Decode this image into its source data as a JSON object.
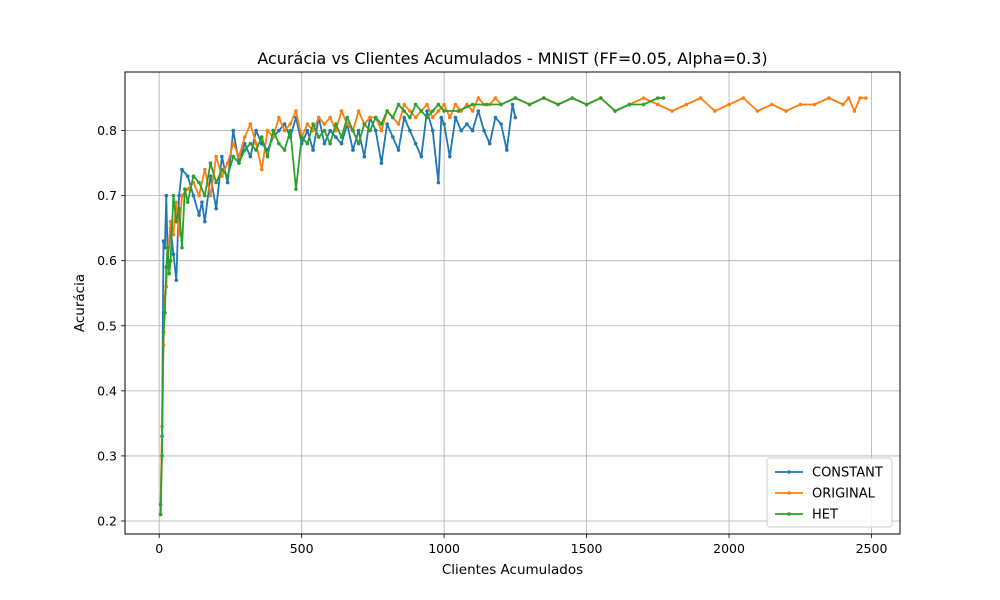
{
  "chart_data": {
    "type": "line",
    "title": "Acurácia vs Clientes Acumulados - MNIST (FF=0.05, Alpha=0.3)",
    "xlabel": "Clientes Acumulados",
    "ylabel": "Acurácia",
    "xlim": [
      -120,
      2600
    ],
    "ylim": [
      0.18,
      0.89
    ],
    "xticks": [
      0,
      500,
      1000,
      1500,
      2000,
      2500
    ],
    "yticks": [
      0.2,
      0.3,
      0.4,
      0.5,
      0.6,
      0.7,
      0.8
    ],
    "grid": true,
    "legend_position": "lower-right",
    "series": [
      {
        "name": "CONSTANT",
        "color": "#1f77b4",
        "x": [
          5,
          10,
          15,
          20,
          25,
          30,
          40,
          50,
          60,
          70,
          80,
          100,
          120,
          140,
          150,
          160,
          180,
          200,
          220,
          240,
          260,
          280,
          300,
          320,
          340,
          360,
          380,
          400,
          420,
          440,
          460,
          480,
          500,
          520,
          540,
          560,
          580,
          600,
          620,
          640,
          660,
          680,
          700,
          720,
          740,
          760,
          780,
          800,
          820,
          840,
          860,
          880,
          900,
          920,
          940,
          960,
          980,
          990,
          1000,
          1020,
          1040,
          1060,
          1080,
          1100,
          1120,
          1140,
          1160,
          1180,
          1200,
          1220,
          1240,
          1250
        ],
        "y": [
          0.225,
          0.33,
          0.63,
          0.62,
          0.7,
          0.6,
          0.65,
          0.61,
          0.57,
          0.7,
          0.74,
          0.73,
          0.7,
          0.67,
          0.69,
          0.66,
          0.73,
          0.68,
          0.76,
          0.72,
          0.8,
          0.75,
          0.78,
          0.76,
          0.8,
          0.78,
          0.77,
          0.79,
          0.8,
          0.81,
          0.79,
          0.82,
          0.78,
          0.8,
          0.77,
          0.82,
          0.78,
          0.8,
          0.79,
          0.78,
          0.81,
          0.77,
          0.8,
          0.76,
          0.82,
          0.8,
          0.75,
          0.81,
          0.79,
          0.77,
          0.82,
          0.8,
          0.78,
          0.76,
          0.83,
          0.8,
          0.72,
          0.82,
          0.81,
          0.76,
          0.82,
          0.8,
          0.81,
          0.8,
          0.83,
          0.8,
          0.78,
          0.82,
          0.81,
          0.77,
          0.84,
          0.82
        ]
      },
      {
        "name": "ORIGINAL",
        "color": "#ff7f0e",
        "x": [
          5,
          10,
          15,
          20,
          25,
          30,
          40,
          50,
          60,
          70,
          80,
          100,
          120,
          140,
          160,
          180,
          200,
          220,
          240,
          260,
          280,
          300,
          320,
          340,
          360,
          380,
          400,
          420,
          440,
          460,
          480,
          500,
          520,
          540,
          560,
          580,
          600,
          620,
          640,
          660,
          680,
          700,
          720,
          740,
          760,
          780,
          800,
          820,
          840,
          860,
          880,
          900,
          920,
          940,
          960,
          980,
          1000,
          1020,
          1040,
          1060,
          1080,
          1100,
          1120,
          1140,
          1160,
          1180,
          1200,
          1250,
          1300,
          1350,
          1400,
          1450,
          1500,
          1550,
          1600,
          1650,
          1700,
          1750,
          1800,
          1850,
          1900,
          1950,
          2000,
          2050,
          2100,
          2150,
          2200,
          2250,
          2300,
          2350,
          2400,
          2420,
          2440,
          2460,
          2480
        ],
        "y": [
          0.21,
          0.345,
          0.47,
          0.55,
          0.56,
          0.61,
          0.66,
          0.64,
          0.69,
          0.64,
          0.7,
          0.71,
          0.72,
          0.7,
          0.74,
          0.7,
          0.76,
          0.73,
          0.75,
          0.78,
          0.76,
          0.79,
          0.81,
          0.78,
          0.74,
          0.8,
          0.79,
          0.82,
          0.8,
          0.81,
          0.83,
          0.79,
          0.81,
          0.8,
          0.82,
          0.81,
          0.82,
          0.8,
          0.83,
          0.81,
          0.8,
          0.83,
          0.81,
          0.82,
          0.82,
          0.8,
          0.83,
          0.82,
          0.81,
          0.84,
          0.83,
          0.82,
          0.83,
          0.84,
          0.82,
          0.83,
          0.84,
          0.82,
          0.84,
          0.83,
          0.84,
          0.83,
          0.85,
          0.84,
          0.84,
          0.85,
          0.84,
          0.85,
          0.84,
          0.85,
          0.84,
          0.85,
          0.84,
          0.85,
          0.83,
          0.84,
          0.85,
          0.84,
          0.83,
          0.84,
          0.85,
          0.83,
          0.84,
          0.85,
          0.83,
          0.84,
          0.83,
          0.84,
          0.84,
          0.85,
          0.84,
          0.85,
          0.83,
          0.85,
          0.85
        ]
      },
      {
        "name": "HET",
        "color": "#2ca02c",
        "x": [
          5,
          10,
          15,
          20,
          25,
          30,
          35,
          40,
          50,
          60,
          70,
          80,
          90,
          100,
          120,
          140,
          160,
          180,
          200,
          220,
          240,
          260,
          280,
          300,
          320,
          340,
          360,
          380,
          400,
          420,
          440,
          460,
          480,
          500,
          520,
          540,
          560,
          580,
          600,
          620,
          640,
          660,
          680,
          700,
          720,
          740,
          760,
          780,
          800,
          820,
          840,
          860,
          880,
          900,
          920,
          940,
          960,
          980,
          1000,
          1050,
          1100,
          1150,
          1200,
          1250,
          1300,
          1350,
          1400,
          1450,
          1500,
          1550,
          1600,
          1650,
          1700,
          1750,
          1770
        ],
        "y": [
          0.21,
          0.3,
          0.49,
          0.52,
          0.59,
          0.62,
          0.58,
          0.6,
          0.7,
          0.66,
          0.68,
          0.62,
          0.71,
          0.69,
          0.73,
          0.72,
          0.7,
          0.75,
          0.72,
          0.74,
          0.73,
          0.76,
          0.75,
          0.77,
          0.78,
          0.77,
          0.79,
          0.76,
          0.8,
          0.78,
          0.77,
          0.8,
          0.71,
          0.79,
          0.78,
          0.81,
          0.79,
          0.8,
          0.78,
          0.81,
          0.79,
          0.82,
          0.8,
          0.78,
          0.81,
          0.8,
          0.82,
          0.81,
          0.83,
          0.82,
          0.84,
          0.83,
          0.82,
          0.84,
          0.83,
          0.82,
          0.83,
          0.84,
          0.83,
          0.83,
          0.84,
          0.84,
          0.84,
          0.85,
          0.84,
          0.85,
          0.84,
          0.85,
          0.84,
          0.85,
          0.83,
          0.84,
          0.84,
          0.85,
          0.85
        ]
      }
    ]
  }
}
